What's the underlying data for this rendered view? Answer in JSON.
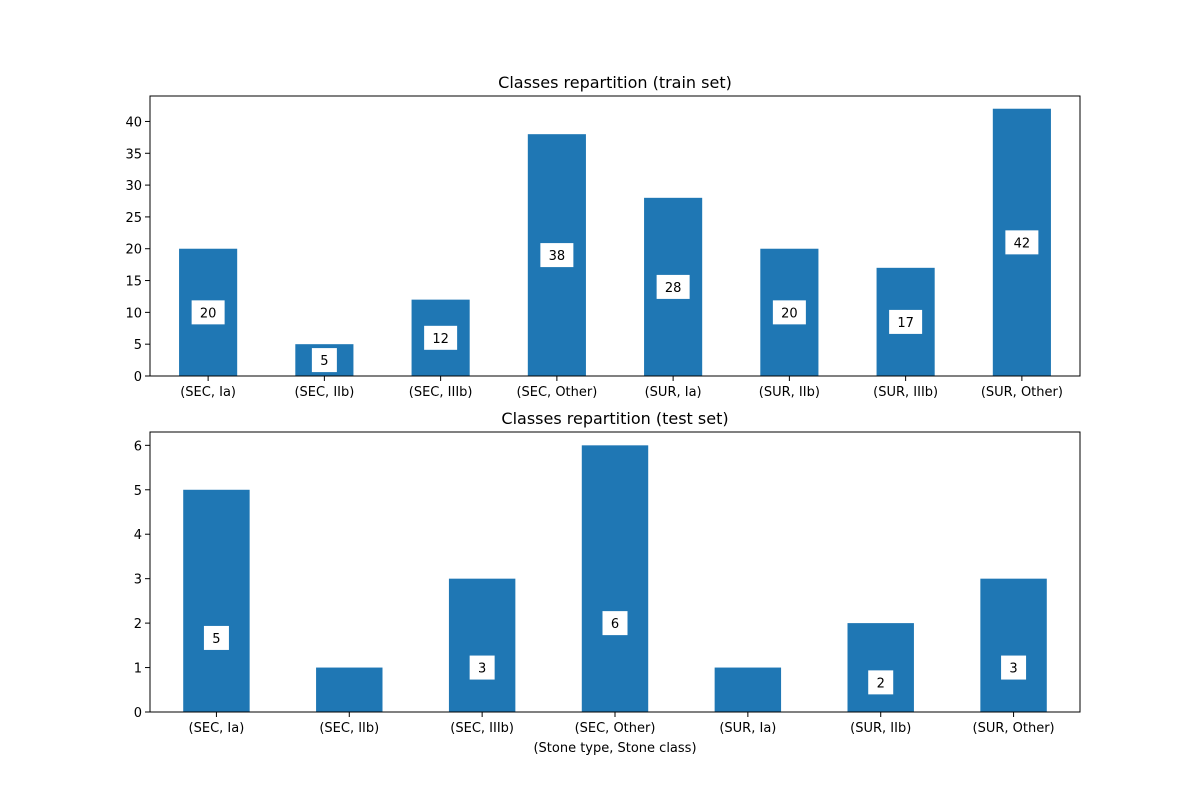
{
  "chart_data": [
    {
      "type": "bar",
      "title": "Classes repartition (train set)",
      "xlabel": "",
      "ylabel": "",
      "categories": [
        "(SEC, Ia)",
        "(SEC, IIb)",
        "(SEC, IIIb)",
        "(SEC, Other)",
        "(SUR, Ia)",
        "(SUR, IIb)",
        "(SUR, IIIb)",
        "(SUR, Other)"
      ],
      "values": [
        20,
        5,
        12,
        38,
        28,
        20,
        17,
        42
      ],
      "data_labels": [
        "20",
        "5",
        "12",
        "38",
        "28",
        "20",
        "17",
        "42"
      ],
      "ylim": [
        0,
        44
      ],
      "yticks": [
        0,
        5,
        10,
        15,
        20,
        25,
        30,
        35,
        40
      ],
      "bar_color": "#1f77b4",
      "grid": false
    },
    {
      "type": "bar",
      "title": "Classes repartition (test set)",
      "xlabel": "(Stone type, Stone class)",
      "ylabel": "",
      "categories": [
        "(SEC, Ia)",
        "(SEC, IIb)",
        "(SEC, IIIb)",
        "(SEC, Other)",
        "(SUR, Ia)",
        "(SUR, IIb)",
        "(SUR, Other)"
      ],
      "values": [
        5,
        1,
        3,
        6,
        1,
        2,
        3
      ],
      "data_labels": [
        "5",
        "",
        "3",
        "6",
        "",
        "2",
        "3"
      ],
      "ylim": [
        0,
        6.3
      ],
      "yticks": [
        0,
        1,
        2,
        3,
        4,
        5,
        6
      ],
      "bar_color": "#1f77b4",
      "grid": false
    }
  ]
}
